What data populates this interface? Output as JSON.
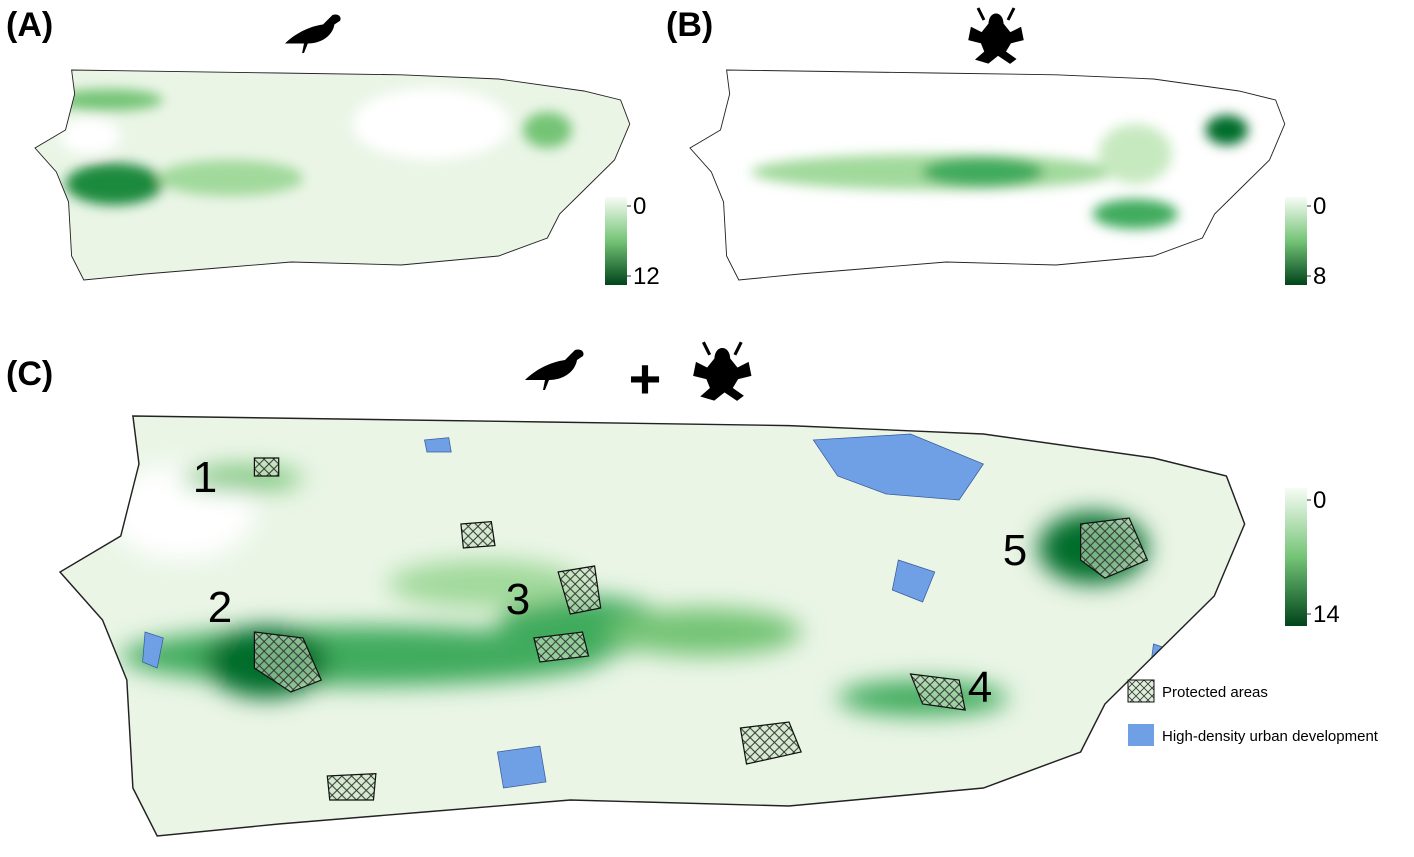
{
  "panels": [
    {
      "label": "(A)",
      "colorbar": {
        "ticks": [
          0,
          12
        ]
      }
    },
    {
      "label": "(B)",
      "colorbar": {
        "ticks": [
          0,
          8
        ]
      }
    },
    {
      "label": "(C)",
      "colorbar": {
        "ticks": [
          0,
          14
        ]
      },
      "combine_symbol": "+",
      "hotspots": [
        "1",
        "2",
        "3",
        "4",
        "5"
      ],
      "legend": [
        "Protected areas",
        "High-density urban development"
      ]
    }
  ]
}
